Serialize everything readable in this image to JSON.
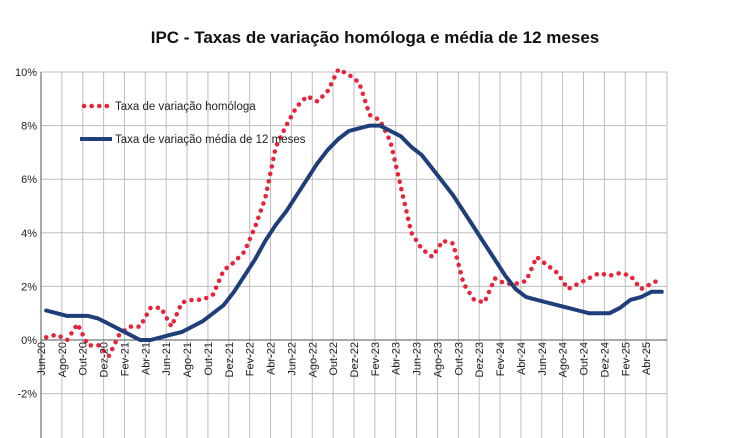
{
  "chart_data": {
    "type": "line",
    "title": "IPC - Taxas de variação homóloga e média de 12 meses",
    "xlabel": "",
    "ylabel": "",
    "ylim": [
      -2,
      10
    ],
    "yticks": [
      -2,
      0,
      2,
      4,
      6,
      8,
      10
    ],
    "ytick_labels": [
      "-2%",
      "0%",
      "2%",
      "4%",
      "6%",
      "8%",
      "10%"
    ],
    "grid": true,
    "legend_position": "top-left",
    "x_categories": [
      "Jun-20",
      "Ago-20",
      "Out-20",
      "Dez-20",
      "Fev-21",
      "Abr-21",
      "Jun-21",
      "Ago-21",
      "Out-21",
      "Dez-21",
      "Fev-22",
      "Abr-22",
      "Jun-22",
      "Ago-22",
      "Out-22",
      "Dez-22",
      "Fev-23",
      "Abr-23",
      "Jun-23",
      "Ago-23",
      "Out-23",
      "Dez-23",
      "Fev-24",
      "Abr-24",
      "Jun-24",
      "Ago-24",
      "Out-24",
      "Dez-24",
      "Fev-25",
      "Abr-25"
    ],
    "x_months": [
      "2020-06",
      "2020-07",
      "2020-08",
      "2020-09",
      "2020-10",
      "2020-11",
      "2020-12",
      "2021-01",
      "2021-02",
      "2021-03",
      "2021-04",
      "2021-05",
      "2021-06",
      "2021-07",
      "2021-08",
      "2021-09",
      "2021-10",
      "2021-11",
      "2021-12",
      "2022-01",
      "2022-02",
      "2022-03",
      "2022-04",
      "2022-05",
      "2022-06",
      "2022-07",
      "2022-08",
      "2022-09",
      "2022-10",
      "2022-11",
      "2022-12",
      "2023-01",
      "2023-02",
      "2023-03",
      "2023-04",
      "2023-05",
      "2023-06",
      "2023-07",
      "2023-08",
      "2023-09",
      "2023-10",
      "2023-11",
      "2023-12",
      "2024-01",
      "2024-02",
      "2024-03",
      "2024-04",
      "2024-05",
      "2024-06",
      "2024-07",
      "2024-08",
      "2024-09",
      "2024-10",
      "2024-11",
      "2024-12",
      "2025-01",
      "2025-02",
      "2025-03",
      "2025-04",
      "2025-05"
    ],
    "series": [
      {
        "name": "Taxa de variação homóloga",
        "style": "dotted",
        "color": "#e8243d",
        "values": [
          0.1,
          0.2,
          0.0,
          0.6,
          -0.2,
          -0.2,
          -0.6,
          0.2,
          0.5,
          0.5,
          1.2,
          1.2,
          0.5,
          1.4,
          1.5,
          1.5,
          1.7,
          2.6,
          2.9,
          3.3,
          4.2,
          5.3,
          7.2,
          8.0,
          8.7,
          9.1,
          8.9,
          9.3,
          10.1,
          9.9,
          9.6,
          8.4,
          8.2,
          7.4,
          5.7,
          4.0,
          3.4,
          3.1,
          3.7,
          3.6,
          2.1,
          1.5,
          1.4,
          2.3,
          2.1,
          2.1,
          2.2,
          3.1,
          2.8,
          2.5,
          1.9,
          2.1,
          2.3,
          2.5,
          2.4,
          2.5,
          2.4,
          1.9,
          2.1,
          2.3
        ]
      },
      {
        "name": "Taxa de variação média de 12 meses",
        "style": "solid",
        "color": "#1f3f7a",
        "values": [
          1.1,
          1.0,
          0.9,
          0.9,
          0.9,
          0.8,
          0.6,
          0.4,
          0.2,
          0.0,
          0.0,
          0.1,
          0.2,
          0.3,
          0.5,
          0.7,
          1.0,
          1.3,
          1.8,
          2.4,
          3.0,
          3.7,
          4.3,
          4.8,
          5.4,
          6.0,
          6.6,
          7.1,
          7.5,
          7.8,
          7.9,
          8.0,
          8.0,
          7.8,
          7.6,
          7.2,
          6.9,
          6.4,
          5.9,
          5.4,
          4.8,
          4.2,
          3.6,
          3.0,
          2.4,
          1.9,
          1.6,
          1.5,
          1.4,
          1.3,
          1.2,
          1.1,
          1.0,
          1.0,
          1.0,
          1.2,
          1.5,
          1.6,
          1.8,
          1.8
        ]
      }
    ]
  }
}
